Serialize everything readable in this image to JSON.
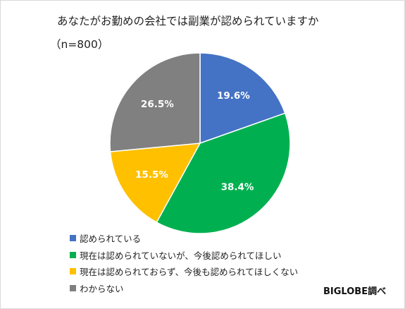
{
  "chart_data": {
    "type": "pie",
    "title": "あなたがお勤めの会社では副業が認められていますか",
    "subtitle": "（n=800）",
    "categories": [
      "認められている",
      "現在は認められていないが、今後認められてほしい",
      "現在は認められておらず、今後も認められてほしくない",
      "わからない"
    ],
    "values": [
      19.6,
      38.4,
      15.5,
      26.5
    ],
    "value_labels": [
      "19.6%",
      "38.4%",
      "15.5%",
      "26.5%"
    ],
    "colors": [
      "#4472c4",
      "#00b050",
      "#ffc000",
      "#808080"
    ],
    "start_angle_deg": 0,
    "direction": "clockwise",
    "legend_position": "bottom-left"
  },
  "credit": "BIGLOBE調べ"
}
